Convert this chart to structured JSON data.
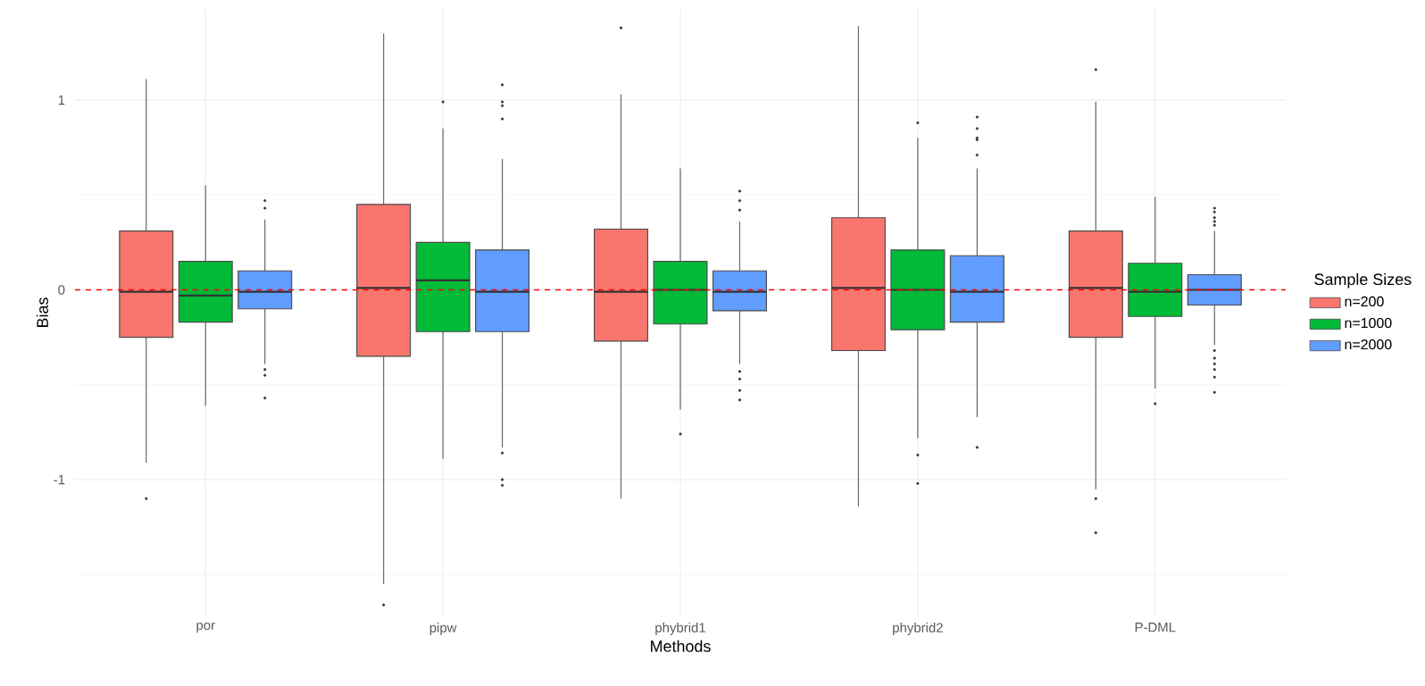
{
  "chart_data": {
    "type": "box",
    "xlabel": "Methods",
    "ylabel": "Bias",
    "legend_title": "Sample Sizes",
    "categories": [
      "por",
      "pipw",
      "phybrid1",
      "phybrid2",
      "P-DML"
    ],
    "ylim": [
      -1.72,
      1.48
    ],
    "yticks": [
      -1,
      0,
      1
    ],
    "grid": true,
    "legend": "right",
    "ref_lines": [
      {
        "axis": "y",
        "value": 0,
        "color": "#ff0000",
        "line_style": "dashed"
      }
    ],
    "series": [
      {
        "name": "n=200",
        "color": "#f8766d",
        "boxes": [
          {
            "low": -0.91,
            "q1": -0.25,
            "median": -0.01,
            "q3": 0.31,
            "high": 1.11,
            "outliers": [
              -1.1
            ]
          },
          {
            "low": -1.55,
            "q1": -0.35,
            "median": 0.01,
            "q3": 0.45,
            "high": 1.35,
            "outliers": [
              -1.66
            ]
          },
          {
            "low": -1.1,
            "q1": -0.27,
            "median": -0.01,
            "q3": 0.32,
            "high": 1.03,
            "outliers": [
              1.38
            ]
          },
          {
            "low": -1.14,
            "q1": -0.32,
            "median": 0.01,
            "q3": 0.38,
            "high": 1.39
          },
          {
            "low": -1.05,
            "q1": -0.25,
            "median": 0.01,
            "q3": 0.31,
            "high": 0.99,
            "outliers": [
              1.16,
              -1.1,
              -1.28
            ]
          }
        ]
      },
      {
        "name": "n=1000",
        "color": "#00ba38",
        "boxes": [
          {
            "low": -0.61,
            "q1": -0.17,
            "median": -0.03,
            "q3": 0.15,
            "high": 0.55
          },
          {
            "low": -0.89,
            "q1": -0.22,
            "median": 0.05,
            "q3": 0.25,
            "high": 0.85,
            "outliers": [
              0.99
            ]
          },
          {
            "low": -0.63,
            "q1": -0.18,
            "median": 0.0,
            "q3": 0.15,
            "high": 0.64,
            "outliers": [
              -0.76
            ]
          },
          {
            "low": -0.78,
            "q1": -0.21,
            "median": 0.0,
            "q3": 0.21,
            "high": 0.8,
            "outliers": [
              0.88,
              -0.87,
              -1.02
            ]
          },
          {
            "low": -0.52,
            "q1": -0.14,
            "median": -0.01,
            "q3": 0.14,
            "high": 0.49,
            "outliers": [
              -0.6
            ]
          }
        ]
      },
      {
        "name": "n=2000",
        "color": "#619cff",
        "boxes": [
          {
            "low": -0.39,
            "q1": -0.1,
            "median": -0.01,
            "q3": 0.1,
            "high": 0.37,
            "outliers": [
              0.47,
              0.43,
              -0.42,
              -0.45,
              -0.57
            ]
          },
          {
            "low": -0.83,
            "q1": -0.22,
            "median": -0.01,
            "q3": 0.21,
            "high": 0.69,
            "outliers": [
              1.08,
              0.99,
              0.97,
              0.9,
              -0.86,
              -1.0,
              -1.03
            ]
          },
          {
            "low": -0.39,
            "q1": -0.11,
            "median": -0.01,
            "q3": 0.1,
            "high": 0.36,
            "outliers": [
              0.52,
              0.47,
              0.42,
              -0.43,
              -0.47,
              -0.53,
              -0.58
            ]
          },
          {
            "low": -0.67,
            "q1": -0.17,
            "median": -0.01,
            "q3": 0.18,
            "high": 0.64,
            "outliers": [
              0.91,
              0.85,
              0.8,
              0.79,
              0.71,
              -0.83
            ]
          },
          {
            "low": -0.29,
            "q1": -0.08,
            "median": 0.0,
            "q3": 0.08,
            "high": 0.31,
            "outliers": [
              0.43,
              0.41,
              0.38,
              0.36,
              0.34,
              -0.32,
              -0.36,
              -0.39,
              -0.42,
              -0.46,
              -0.54
            ]
          }
        ]
      }
    ]
  }
}
